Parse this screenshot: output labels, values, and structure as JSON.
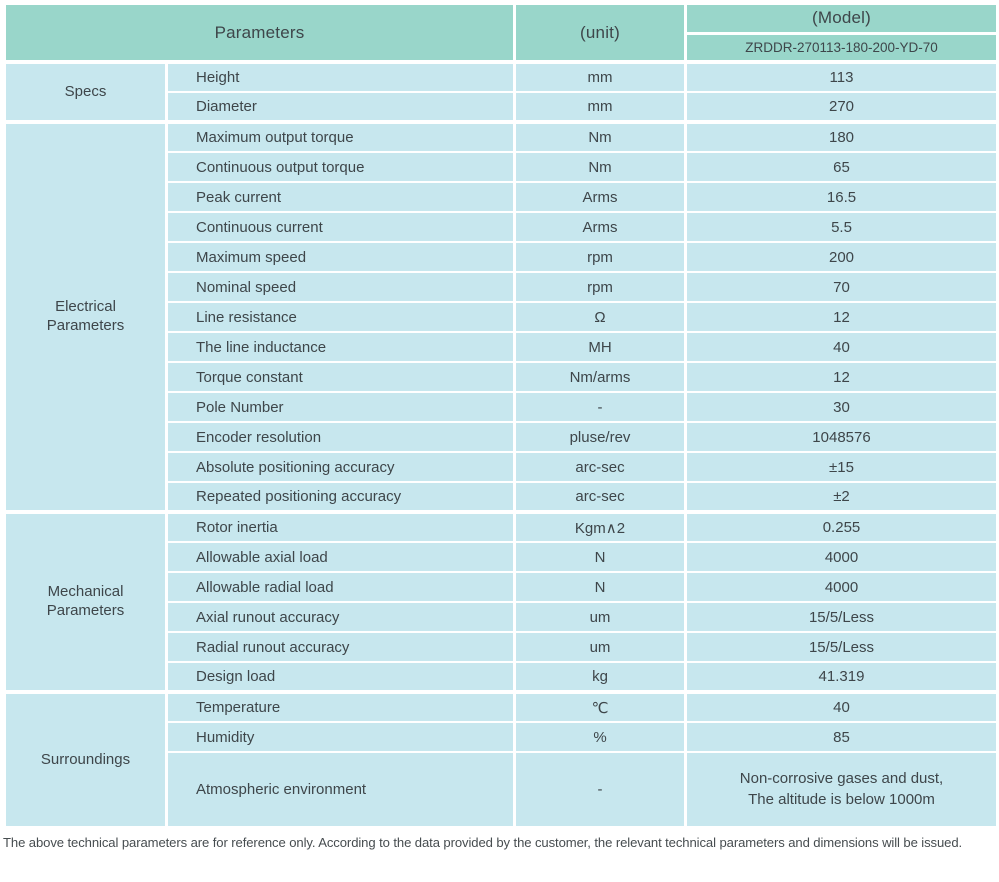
{
  "header": {
    "parameters": "Parameters",
    "unit": "(unit)",
    "model": "(Model)",
    "model_value": "ZRDDR-270113-180-200-YD-70"
  },
  "sections": [
    {
      "name": "Specs",
      "rows": [
        {
          "param": "Height",
          "unit": "mm",
          "value": "113"
        },
        {
          "param": "Diameter",
          "unit": "mm",
          "value": "270"
        }
      ]
    },
    {
      "name": "Electrical Parameters",
      "rows": [
        {
          "param": "Maximum output torque",
          "unit": "Nm",
          "value": "180"
        },
        {
          "param": "Continuous output torque",
          "unit": "Nm",
          "value": "65"
        },
        {
          "param": "Peak current",
          "unit": "Arms",
          "value": "16.5"
        },
        {
          "param": "Continuous current",
          "unit": "Arms",
          "value": "5.5"
        },
        {
          "param": "Maximum speed",
          "unit": "rpm",
          "value": "200"
        },
        {
          "param": "Nominal speed",
          "unit": "rpm",
          "value": "70"
        },
        {
          "param": "Line resistance",
          "unit": "Ω",
          "value": "12"
        },
        {
          "param": "The line inductance",
          "unit": "MH",
          "value": "40"
        },
        {
          "param": "Torque constant",
          "unit": "Nm/arms",
          "value": "12"
        },
        {
          "param": "Pole Number",
          "unit": "-",
          "value": "30"
        },
        {
          "param": "Encoder resolution",
          "unit": "pluse/rev",
          "value": "1048576"
        },
        {
          "param": "Absolute positioning accuracy",
          "unit": "arc-sec",
          "value": "±15"
        },
        {
          "param": "Repeated positioning accuracy",
          "unit": "arc-sec",
          "value": "±2"
        }
      ]
    },
    {
      "name": "Mechanical Parameters",
      "rows": [
        {
          "param": "Rotor inertia",
          "unit": "Kgm∧2",
          "value": "0.255"
        },
        {
          "param": "Allowable axial load",
          "unit": "N",
          "value": "4000"
        },
        {
          "param": "Allowable radial load",
          "unit": "N",
          "value": "4000"
        },
        {
          "param": "Axial runout accuracy",
          "unit": "um",
          "value": "15/5/Less"
        },
        {
          "param": "Radial runout accuracy",
          "unit": "um",
          "value": "15/5/Less"
        },
        {
          "param": "Design load",
          "unit": "kg",
          "value": "41.319"
        }
      ]
    },
    {
      "name": "Surroundings",
      "rows": [
        {
          "param": "Temperature",
          "unit": "℃",
          "value": "40"
        },
        {
          "param": "Humidity",
          "unit": "%",
          "value": "85"
        },
        {
          "param": "Atmospheric environment",
          "unit": "-",
          "value_lines": [
            "Non-corrosive gases and dust,",
            "The altitude is below 1000m"
          ],
          "tall": true
        }
      ]
    }
  ],
  "footer": {
    "note": "The above technical parameters are for reference only. According to the data provided by the customer, the relevant technical parameters and dimensions will be issued."
  },
  "colors": {
    "header_bg": "#99d6ca",
    "row_bg": "#c7e7ee",
    "text": "#3e464a"
  }
}
